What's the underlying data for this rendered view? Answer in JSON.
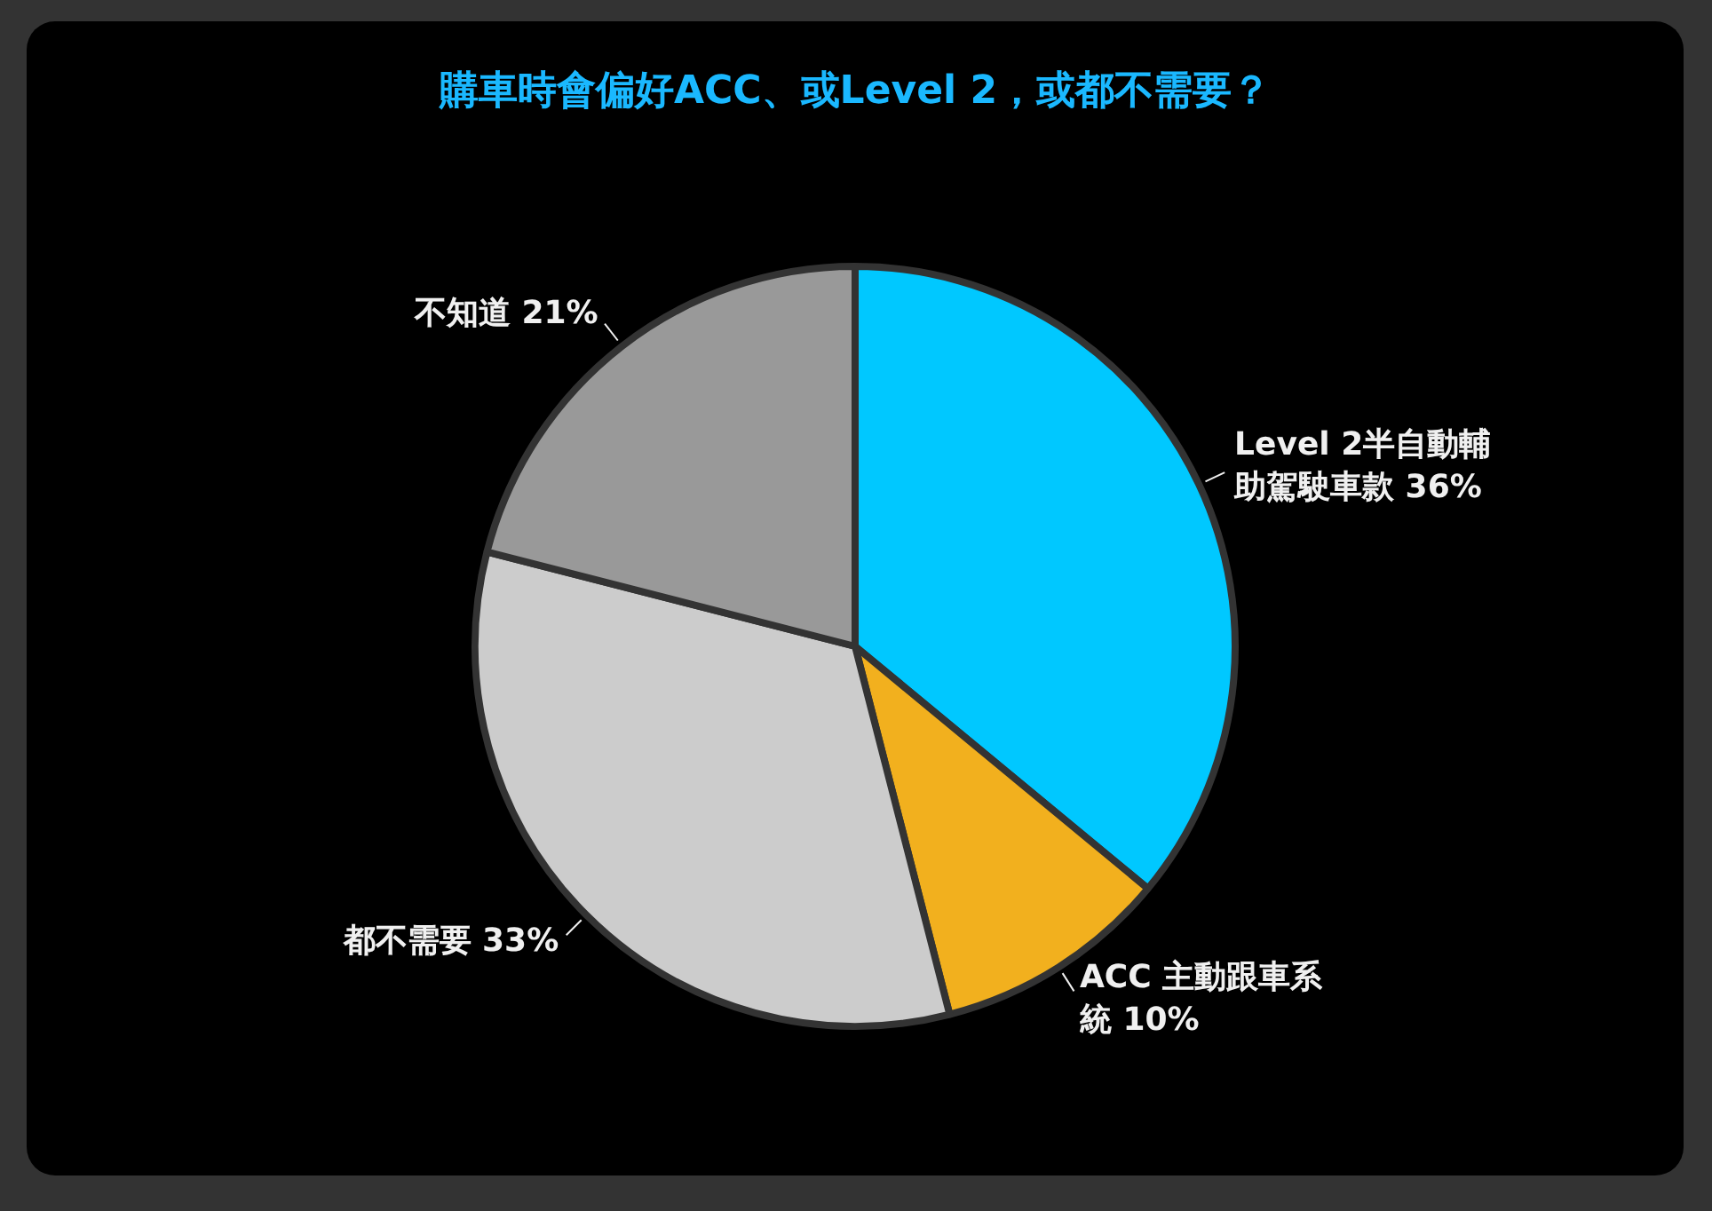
{
  "chart_data": {
    "type": "pie",
    "title": "購車時會偏好ACC、或Level 2，或都不需要？",
    "categories": [
      "Level 2半自動輔助駕駛車款",
      "ACC 主動跟車系統",
      "都不需要",
      "不知道"
    ],
    "values": [
      36,
      10,
      33,
      21
    ],
    "value_labels": [
      "36%",
      "10%",
      "33%",
      "21%"
    ],
    "colors": [
      "#00c8ff",
      "#f2b01e",
      "#cccccc",
      "#999999"
    ],
    "legend": false
  }
}
